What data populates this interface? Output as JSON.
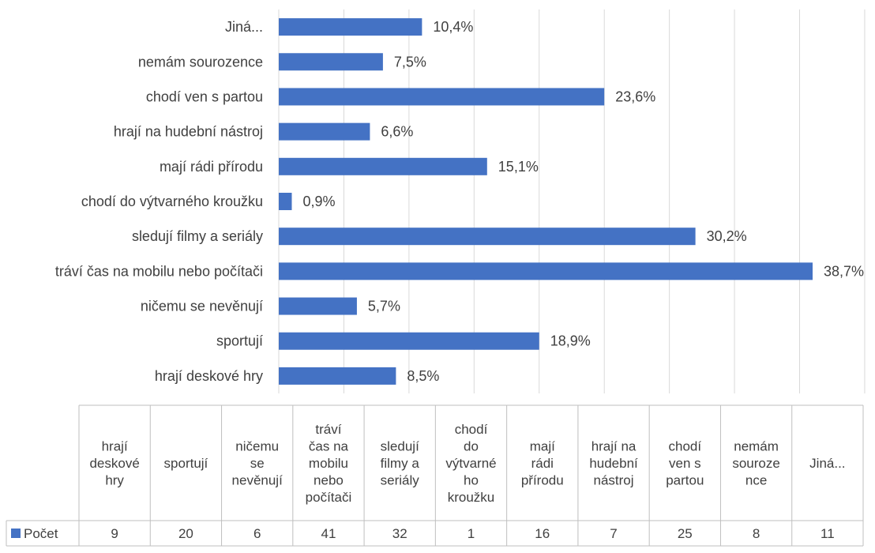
{
  "chart_data": {
    "type": "bar",
    "orientation": "horizontal",
    "bar_color": "#4472C4",
    "categories": [
      "hrají deskové hry",
      "sportují",
      "ničemu se nevěnují",
      "tráví čas na mobilu nebo počítači",
      "sledují filmy a seriály",
      "chodí do výtvarného kroužku",
      "mají rádi přírodu",
      "hrají na hudební nástroj",
      "chodí ven s partou",
      "nemám sourozence",
      "Jiná..."
    ],
    "series": [
      {
        "name": "Počet",
        "values": [
          9,
          20,
          6,
          41,
          32,
          1,
          16,
          7,
          25,
          8,
          11
        ],
        "percent_labels": [
          "8,5%",
          "18,9%",
          "5,7%",
          "38,7%",
          "30,2%",
          "0,9%",
          "15,1%",
          "6,6%",
          "23,6%",
          "7,5%",
          "10,4%"
        ]
      }
    ],
    "table_headers": [
      [
        "hrají",
        "deskové",
        "hry"
      ],
      [
        "sportují"
      ],
      [
        "ničemu",
        "se",
        "nevěnují"
      ],
      [
        "tráví",
        "čas na",
        "mobilu",
        "nebo",
        "počítači"
      ],
      [
        "sledují",
        "filmy a",
        "seriály"
      ],
      [
        "chodí",
        "do",
        "výtvarné",
        "ho",
        "kroužku"
      ],
      [
        "mají",
        "rádi",
        "přírodu"
      ],
      [
        "hrají na",
        "hudební",
        "nástroj"
      ],
      [
        "chodí",
        "ven s",
        "partou"
      ],
      [
        "nemám",
        "souroze",
        "nce"
      ],
      [
        "Jiná..."
      ]
    ],
    "xlim": [
      0,
      41
    ],
    "grid": true,
    "legend": "data-table",
    "title": "",
    "xlabel": "",
    "ylabel": ""
  }
}
